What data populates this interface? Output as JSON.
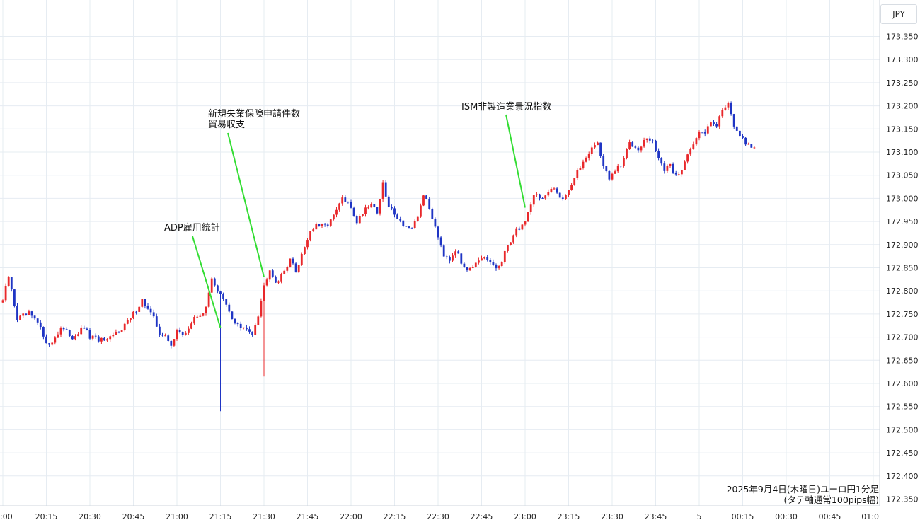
{
  "chart_data": {
    "type": "candlestick",
    "currency": "JPY",
    "caption": [
      "2025年9月4日(木曜日)ユーロ円1分足",
      "(タテ軸通常100pips幅)"
    ],
    "x_ticks": [
      ":00",
      "20:15",
      "20:30",
      "20:45",
      "21:00",
      "21:15",
      "21:30",
      "21:45",
      "22:00",
      "22:15",
      "22:30",
      "22:45",
      "23:00",
      "23:15",
      "23:30",
      "23:45",
      "5",
      "00:15",
      "00:30",
      "00:45",
      "01:0"
    ],
    "y_ticks": [
      "173.350",
      "173.300",
      "173.250",
      "173.200",
      "173.150",
      "173.100",
      "173.050",
      "173.000",
      "172.950",
      "172.900",
      "172.850",
      "172.800",
      "172.750",
      "172.700",
      "172.650",
      "172.600",
      "172.550",
      "172.500",
      "172.450",
      "172.400",
      "172.350"
    ],
    "ylim": [
      172.35,
      173.35
    ],
    "colors": {
      "up": "#e8282b",
      "down": "#1f35c4",
      "grid": "#e6ecf2",
      "annotation_line": "#33dd33"
    },
    "annotations": [
      {
        "lines": [
          "ADP雇用統計"
        ],
        "time": "21:15",
        "price": 172.72
      },
      {
        "lines": [
          "新規失業保険申請件数",
          "貿易収支"
        ],
        "time": "21:30",
        "price": 172.83
      },
      {
        "lines": [
          "ISM非製造業景況指数"
        ],
        "time": "23:00",
        "price": 172.98
      }
    ],
    "close_path": [
      [
        0,
        172.78
      ],
      [
        2,
        172.83
      ],
      [
        5,
        172.74
      ],
      [
        9,
        172.75
      ],
      [
        12,
        172.73
      ],
      [
        16,
        172.68
      ],
      [
        20,
        172.72
      ],
      [
        24,
        172.7
      ],
      [
        28,
        172.72
      ],
      [
        30,
        172.7
      ],
      [
        36,
        172.69
      ],
      [
        44,
        172.74
      ],
      [
        48,
        172.78
      ],
      [
        50,
        172.76
      ],
      [
        52,
        172.74
      ],
      [
        54,
        172.71
      ],
      [
        56,
        172.7
      ],
      [
        58,
        172.68
      ],
      [
        60,
        172.72
      ],
      [
        62,
        172.7
      ],
      [
        66,
        172.74
      ],
      [
        70,
        172.76
      ],
      [
        72,
        172.83
      ],
      [
        74,
        172.8
      ],
      [
        76,
        172.78
      ],
      [
        79,
        172.74
      ],
      [
        82,
        172.72
      ],
      [
        86,
        172.71
      ],
      [
        88,
        172.75
      ],
      [
        90,
        172.81
      ],
      [
        92,
        172.85
      ],
      [
        94,
        172.82
      ],
      [
        96,
        172.83
      ],
      [
        99,
        172.87
      ],
      [
        101,
        172.84
      ],
      [
        103,
        172.88
      ],
      [
        106,
        172.93
      ],
      [
        108,
        172.94
      ],
      [
        111,
        172.94
      ],
      [
        114,
        172.96
      ],
      [
        117,
        173.0
      ],
      [
        120,
        172.98
      ],
      [
        122,
        172.95
      ],
      [
        125,
        172.98
      ],
      [
        127,
        172.99
      ],
      [
        129,
        172.97
      ],
      [
        131,
        173.03
      ],
      [
        133,
        172.98
      ],
      [
        135,
        172.97
      ],
      [
        137,
        172.95
      ],
      [
        139,
        172.94
      ],
      [
        141,
        172.93
      ],
      [
        143,
        172.96
      ],
      [
        145,
        173.01
      ],
      [
        148,
        172.96
      ],
      [
        150,
        172.92
      ],
      [
        152,
        172.88
      ],
      [
        154,
        172.87
      ],
      [
        156,
        172.89
      ],
      [
        158,
        172.86
      ],
      [
        160,
        172.85
      ],
      [
        164,
        172.86
      ],
      [
        166,
        172.87
      ],
      [
        168,
        172.86
      ],
      [
        170,
        172.85
      ],
      [
        172,
        172.86
      ],
      [
        174,
        172.9
      ],
      [
        177,
        172.93
      ],
      [
        180,
        172.95
      ],
      [
        183,
        173.01
      ],
      [
        186,
        173.0
      ],
      [
        190,
        173.02
      ],
      [
        193,
        173.0
      ],
      [
        196,
        173.03
      ],
      [
        200,
        173.08
      ],
      [
        203,
        173.11
      ],
      [
        205,
        173.12
      ],
      [
        207,
        173.07
      ],
      [
        209,
        173.04
      ],
      [
        211,
        173.06
      ],
      [
        213,
        173.07
      ],
      [
        216,
        173.12
      ],
      [
        219,
        173.11
      ],
      [
        222,
        173.13
      ],
      [
        224,
        173.12
      ],
      [
        226,
        173.09
      ],
      [
        228,
        173.06
      ],
      [
        230,
        173.07
      ],
      [
        232,
        173.05
      ],
      [
        234,
        173.06
      ],
      [
        236,
        173.1
      ],
      [
        238,
        173.12
      ],
      [
        240,
        173.14
      ],
      [
        242,
        173.14
      ],
      [
        244,
        173.17
      ],
      [
        246,
        173.16
      ],
      [
        248,
        173.19
      ],
      [
        250,
        173.21
      ],
      [
        252,
        173.16
      ],
      [
        254,
        173.13
      ],
      [
        256,
        173.12
      ],
      [
        259,
        173.11
      ]
    ]
  }
}
